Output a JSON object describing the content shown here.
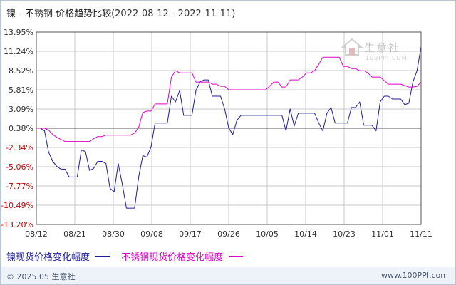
{
  "title": "镍 - 不锈钢 价格趋势比较",
  "date_range": "(2022-08-12 - 2022-11-11)",
  "logo": {
    "cn": "生意社",
    "en": "100PPI.COM",
    "icon": "house-logo-icon"
  },
  "footer": {
    "copyright": "© 2025.05 生意社",
    "site": "www.100PPI.com"
  },
  "colors": {
    "series1": "#1c1ca0",
    "series2": "#e100c8",
    "axis_pos": "#333333",
    "axis_neg": "#cc0000",
    "grid": "#c8c8c8"
  },
  "chart_data": {
    "type": "line",
    "x_ticks": [
      "08/12",
      "08/21",
      "08/30",
      "09/08",
      "09/17",
      "09/26",
      "10/05",
      "10/14",
      "10/23",
      "11/01",
      "11/11"
    ],
    "y_ticks": [
      "13.95%",
      "11.24%",
      "8.52%",
      "5.81%",
      "3.09%",
      "0.38%",
      "-2.34%",
      "-5.06%",
      "-7.77%",
      "-10.49%",
      "-13.20%"
    ],
    "ylim": [
      -13.2,
      13.95
    ],
    "grid": true,
    "legend_position": "bottom",
    "series": [
      {
        "name": "镍现货价格变化幅度",
        "color": "#1c1ca0",
        "points": [
          [
            "2022-08-12",
            0.38
          ],
          [
            "2022-08-13",
            0.38
          ],
          [
            "2022-08-14",
            0.0
          ],
          [
            "2022-08-15",
            -3.0
          ],
          [
            "2022-08-16",
            -4.3
          ],
          [
            "2022-08-17",
            -5.0
          ],
          [
            "2022-08-18",
            -5.4
          ],
          [
            "2022-08-19",
            -5.4
          ],
          [
            "2022-08-20",
            -6.5
          ],
          [
            "2022-08-21",
            -6.5
          ],
          [
            "2022-08-22",
            -6.5
          ],
          [
            "2022-08-23",
            -2.7
          ],
          [
            "2022-08-24",
            -2.9
          ],
          [
            "2022-08-25",
            -5.6
          ],
          [
            "2022-08-26",
            -5.3
          ],
          [
            "2022-08-27",
            -4.3
          ],
          [
            "2022-08-28",
            -4.3
          ],
          [
            "2022-08-29",
            -4.6
          ],
          [
            "2022-08-30",
            -8.1
          ],
          [
            "2022-08-31",
            -8.6
          ],
          [
            "2022-09-01",
            -4.6
          ],
          [
            "2022-09-02",
            -7.5
          ],
          [
            "2022-09-03",
            -10.9
          ],
          [
            "2022-09-04",
            -10.9
          ],
          [
            "2022-09-05",
            -10.9
          ],
          [
            "2022-09-06",
            -6.5
          ],
          [
            "2022-09-07",
            -3.5
          ],
          [
            "2022-09-08",
            -3.7
          ],
          [
            "2022-09-09",
            -2.3
          ],
          [
            "2022-09-10",
            1.1
          ],
          [
            "2022-09-11",
            1.1
          ],
          [
            "2022-09-12",
            1.1
          ],
          [
            "2022-09-13",
            1.1
          ],
          [
            "2022-09-14",
            4.9
          ],
          [
            "2022-09-15",
            4.1
          ],
          [
            "2022-09-16",
            5.7
          ],
          [
            "2022-09-17",
            2.2
          ],
          [
            "2022-09-18",
            2.2
          ],
          [
            "2022-09-19",
            2.2
          ],
          [
            "2022-09-20",
            5.7
          ],
          [
            "2022-09-21",
            6.9
          ],
          [
            "2022-09-22",
            7.2
          ],
          [
            "2022-09-23",
            7.2
          ],
          [
            "2022-09-24",
            4.9
          ],
          [
            "2022-09-25",
            4.9
          ],
          [
            "2022-09-26",
            4.9
          ],
          [
            "2022-09-27",
            3.1
          ],
          [
            "2022-09-28",
            0.4
          ],
          [
            "2022-09-29",
            -0.5
          ],
          [
            "2022-09-30",
            1.5
          ],
          [
            "2022-10-01",
            2.2
          ],
          [
            "2022-10-02",
            2.2
          ],
          [
            "2022-10-03",
            2.2
          ],
          [
            "2022-10-04",
            2.2
          ],
          [
            "2022-10-05",
            2.2
          ],
          [
            "2022-10-06",
            2.2
          ],
          [
            "2022-10-07",
            2.2
          ],
          [
            "2022-10-08",
            2.2
          ],
          [
            "2022-10-09",
            2.2
          ],
          [
            "2022-10-10",
            2.2
          ],
          [
            "2022-10-11",
            2.2
          ],
          [
            "2022-10-12",
            0.0
          ],
          [
            "2022-10-13",
            3.1
          ],
          [
            "2022-10-14",
            0.7
          ],
          [
            "2022-10-15",
            2.5
          ],
          [
            "2022-10-16",
            2.5
          ],
          [
            "2022-10-17",
            2.5
          ],
          [
            "2022-10-18",
            2.5
          ],
          [
            "2022-10-19",
            2.5
          ],
          [
            "2022-10-20",
            1.1
          ],
          [
            "2022-10-21",
            0.0
          ],
          [
            "2022-10-22",
            2.5
          ],
          [
            "2022-10-23",
            3.3
          ],
          [
            "2022-10-24",
            1.1
          ],
          [
            "2022-10-25",
            1.1
          ],
          [
            "2022-10-26",
            1.1
          ],
          [
            "2022-10-27",
            1.1
          ],
          [
            "2022-10-28",
            3.3
          ],
          [
            "2022-10-29",
            3.3
          ],
          [
            "2022-10-30",
            4.1
          ],
          [
            "2022-10-31",
            0.8
          ],
          [
            "2022-11-01",
            0.8
          ],
          [
            "2022-11-02",
            0.8
          ],
          [
            "2022-11-03",
            0.0
          ],
          [
            "2022-11-04",
            4.1
          ],
          [
            "2022-11-05",
            4.9
          ],
          [
            "2022-11-06",
            4.9
          ],
          [
            "2022-11-07",
            4.5
          ],
          [
            "2022-11-08",
            4.5
          ],
          [
            "2022-11-09",
            4.5
          ],
          [
            "2022-11-10",
            3.7
          ],
          [
            "2022-11-11",
            3.9
          ],
          [
            "2022-11-12",
            6.9
          ],
          [
            "2022-11-13",
            8.5
          ],
          [
            "2022-11-14",
            11.9
          ]
        ]
      },
      {
        "name": "不锈钢现货价格变化幅度",
        "color": "#e100c8",
        "points": [
          [
            "2022-08-12",
            0.38
          ],
          [
            "2022-08-13",
            0.38
          ],
          [
            "2022-08-14",
            0.38
          ],
          [
            "2022-08-15",
            0.1
          ],
          [
            "2022-08-16",
            -0.5
          ],
          [
            "2022-08-17",
            -0.9
          ],
          [
            "2022-08-18",
            -1.2
          ],
          [
            "2022-08-19",
            -1.5
          ],
          [
            "2022-08-20",
            -1.5
          ],
          [
            "2022-08-25",
            -1.5
          ],
          [
            "2022-08-26",
            -1.1
          ],
          [
            "2022-08-27",
            -0.8
          ],
          [
            "2022-08-28",
            -0.8
          ],
          [
            "2022-08-29",
            -0.6
          ],
          [
            "2022-08-30",
            -0.6
          ],
          [
            "2022-09-04",
            -0.6
          ],
          [
            "2022-09-05",
            -0.3
          ],
          [
            "2022-09-06",
            0.5
          ],
          [
            "2022-09-07",
            2.6
          ],
          [
            "2022-09-08",
            2.8
          ],
          [
            "2022-09-09",
            2.8
          ],
          [
            "2022-09-10",
            3.8
          ],
          [
            "2022-09-11",
            3.8
          ],
          [
            "2022-09-12",
            3.8
          ],
          [
            "2022-09-13",
            3.8
          ],
          [
            "2022-09-14",
            7.6
          ],
          [
            "2022-09-15",
            8.5
          ],
          [
            "2022-09-16",
            8.2
          ],
          [
            "2022-09-17",
            8.2
          ],
          [
            "2022-09-18",
            8.2
          ],
          [
            "2022-09-19",
            8.2
          ],
          [
            "2022-09-20",
            6.9
          ],
          [
            "2022-09-21",
            6.9
          ],
          [
            "2022-09-22",
            6.9
          ],
          [
            "2022-09-23",
            6.9
          ],
          [
            "2022-09-24",
            6.6
          ],
          [
            "2022-09-25",
            6.6
          ],
          [
            "2022-09-26",
            6.3
          ],
          [
            "2022-09-27",
            6.3
          ],
          [
            "2022-09-28",
            5.8
          ],
          [
            "2022-09-29",
            5.8
          ],
          [
            "2022-09-30",
            5.8
          ],
          [
            "2022-10-06",
            5.8
          ],
          [
            "2022-10-07",
            5.8
          ],
          [
            "2022-10-08",
            6.3
          ],
          [
            "2022-10-09",
            6.9
          ],
          [
            "2022-10-10",
            6.9
          ],
          [
            "2022-10-11",
            6.2
          ],
          [
            "2022-10-12",
            6.2
          ],
          [
            "2022-10-13",
            7.2
          ],
          [
            "2022-10-14",
            7.2
          ],
          [
            "2022-10-15",
            7.2
          ],
          [
            "2022-10-16",
            7.6
          ],
          [
            "2022-10-17",
            8.2
          ],
          [
            "2022-10-18",
            8.2
          ],
          [
            "2022-10-19",
            8.5
          ],
          [
            "2022-10-20",
            9.4
          ],
          [
            "2022-10-21",
            10.4
          ],
          [
            "2022-10-22",
            10.4
          ],
          [
            "2022-10-23",
            10.4
          ],
          [
            "2022-10-24",
            10.4
          ],
          [
            "2022-10-25",
            10.4
          ],
          [
            "2022-10-26",
            9.1
          ],
          [
            "2022-10-27",
            9.1
          ],
          [
            "2022-10-28",
            8.8
          ],
          [
            "2022-10-29",
            8.8
          ],
          [
            "2022-10-30",
            8.5
          ],
          [
            "2022-10-31",
            8.5
          ],
          [
            "2022-11-01",
            8.2
          ],
          [
            "2022-11-02",
            7.6
          ],
          [
            "2022-11-03",
            7.6
          ],
          [
            "2022-11-04",
            7.6
          ],
          [
            "2022-11-05",
            7.1
          ],
          [
            "2022-11-06",
            6.6
          ],
          [
            "2022-11-07",
            6.6
          ],
          [
            "2022-11-08",
            6.6
          ],
          [
            "2022-11-09",
            6.6
          ],
          [
            "2022-11-10",
            6.4
          ],
          [
            "2022-11-11",
            6.2
          ],
          [
            "2022-11-12",
            6.2
          ],
          [
            "2022-11-13",
            6.3
          ],
          [
            "2022-11-14",
            6.9
          ]
        ]
      }
    ]
  }
}
